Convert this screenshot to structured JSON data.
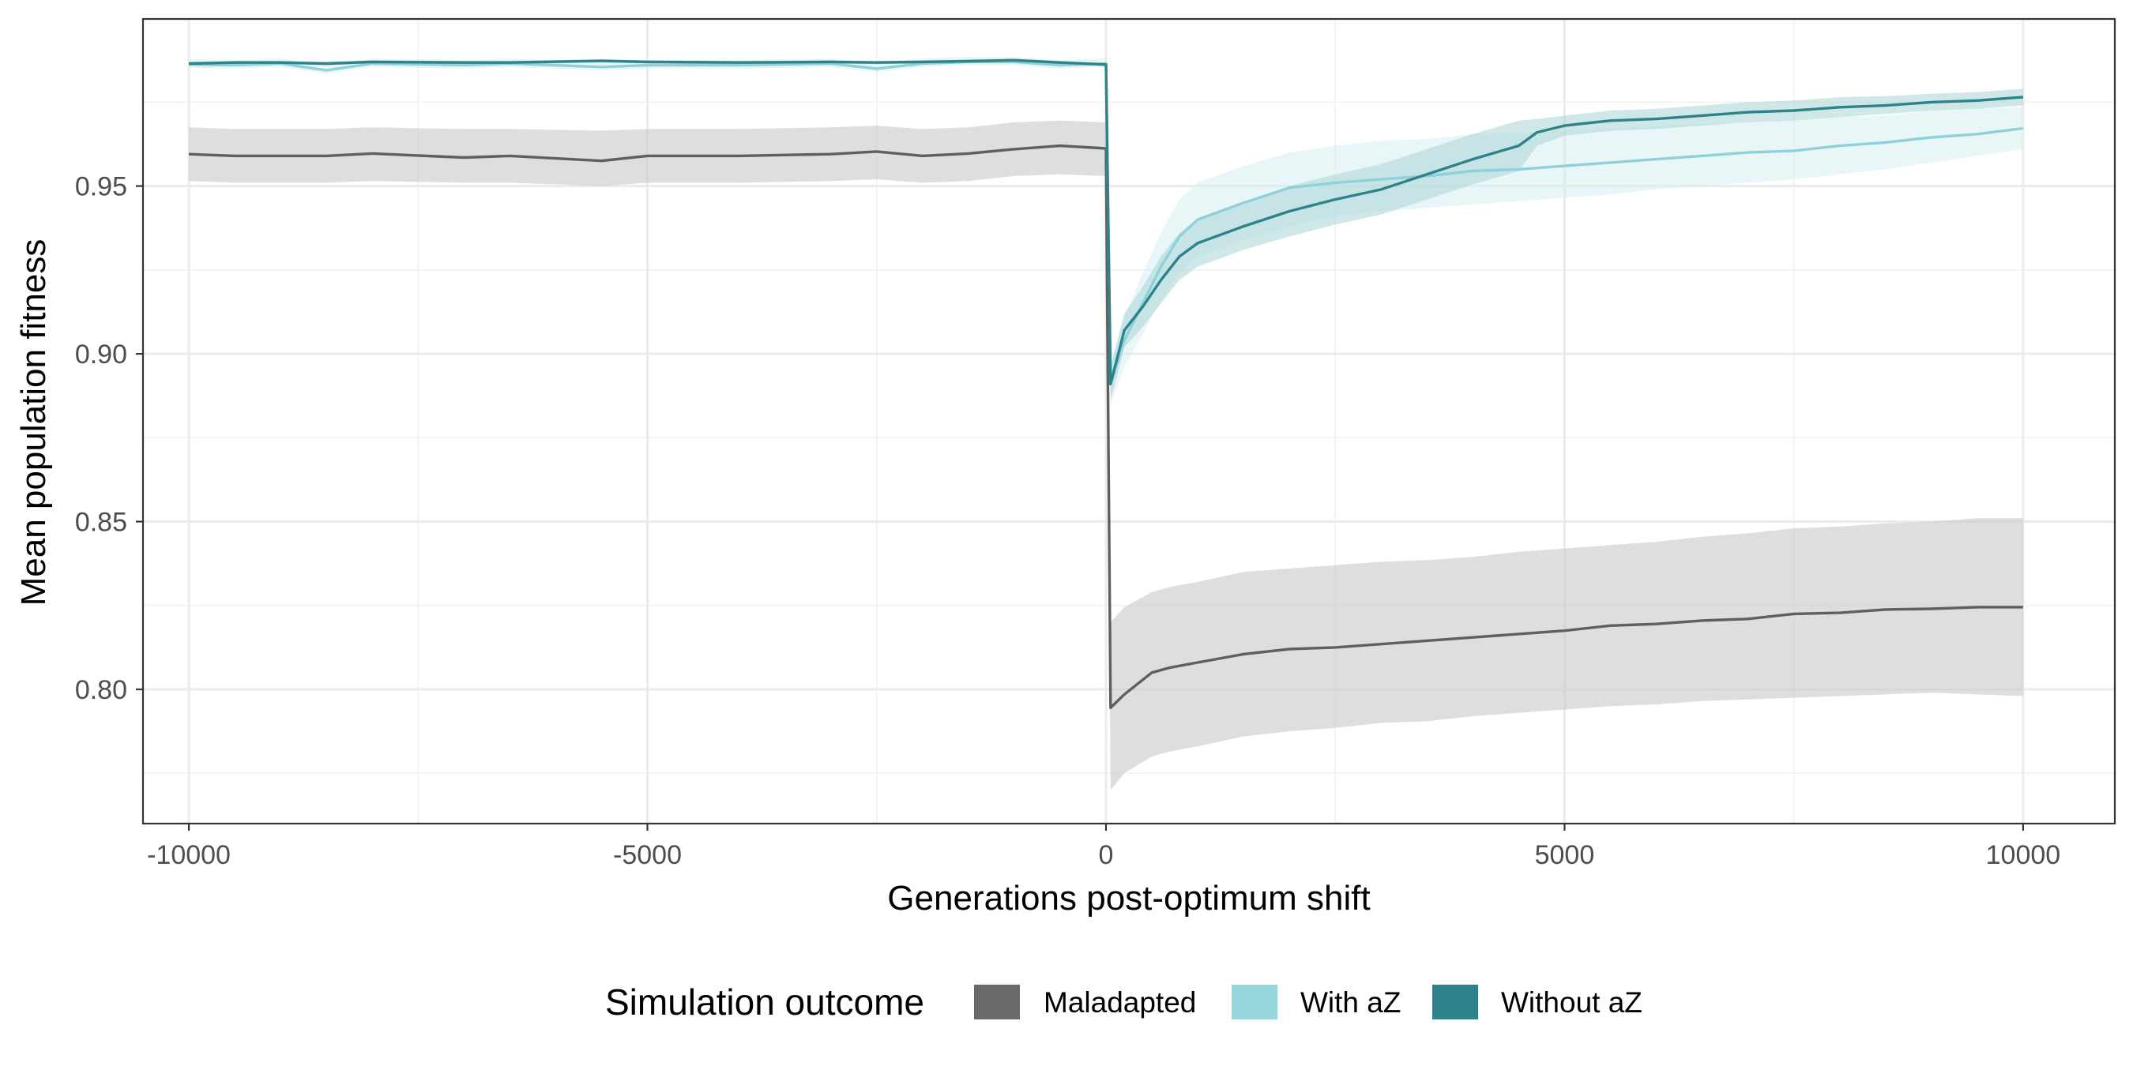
{
  "chart_data": {
    "type": "line",
    "xlabel": "Generations post-optimum shift",
    "ylabel": "Mean population fitness",
    "xlim": [
      -10500,
      11000
    ],
    "ylim": [
      0.76,
      0.9998
    ],
    "x_ticks": [
      -10000,
      -5000,
      0,
      5000,
      10000
    ],
    "x_tick_labels": [
      "-10000",
      "-5000",
      "0",
      "5000",
      "10000"
    ],
    "y_ticks": [
      0.8,
      0.85,
      0.9,
      0.95
    ],
    "y_tick_labels": [
      "0.80",
      "0.85",
      "0.90",
      "0.95"
    ],
    "grid": true,
    "legend": {
      "title": "Simulation outcome",
      "position": "bottom",
      "items": [
        {
          "label": "Maladapted",
          "color": "#696969"
        },
        {
          "label": "With aZ",
          "color": "#95d5dc"
        },
        {
          "label": "Without aZ",
          "color": "#2e8289"
        }
      ]
    },
    "series": [
      {
        "name": "Maladapted",
        "line_color": "#5f5f5f",
        "band_color": "#c8c8c8",
        "x": [
          -10000,
          -9500,
          -8500,
          -8000,
          -7000,
          -6500,
          -5500,
          -5000,
          -4000,
          -3000,
          -2500,
          -2000,
          -1500,
          -1000,
          -500,
          0,
          50,
          200,
          500,
          700,
          1000,
          1500,
          2000,
          2500,
          3000,
          3500,
          4000,
          4500,
          5000,
          5500,
          6000,
          6500,
          7000,
          7500,
          8000,
          8500,
          9000,
          9500,
          10000
        ],
        "y": [
          0.9595,
          0.959,
          0.959,
          0.9597,
          0.9585,
          0.959,
          0.9575,
          0.959,
          0.959,
          0.9595,
          0.9603,
          0.959,
          0.9597,
          0.961,
          0.962,
          0.9612,
          0.7945,
          0.7985,
          0.805,
          0.8065,
          0.808,
          0.8105,
          0.812,
          0.8125,
          0.8135,
          0.8145,
          0.8155,
          0.8165,
          0.8175,
          0.819,
          0.8195,
          0.8205,
          0.821,
          0.8225,
          0.8228,
          0.8238,
          0.824,
          0.8245,
          0.8245
        ],
        "lower": [
          0.9515,
          0.951,
          0.951,
          0.9515,
          0.951,
          0.951,
          0.95,
          0.951,
          0.951,
          0.9515,
          0.952,
          0.951,
          0.9515,
          0.953,
          0.9535,
          0.953,
          0.77,
          0.775,
          0.78,
          0.7815,
          0.783,
          0.786,
          0.7875,
          0.7885,
          0.79,
          0.7905,
          0.792,
          0.793,
          0.794,
          0.795,
          0.7955,
          0.7965,
          0.797,
          0.7975,
          0.798,
          0.7985,
          0.799,
          0.7985,
          0.798
        ],
        "upper": [
          0.9675,
          0.967,
          0.967,
          0.9675,
          0.967,
          0.967,
          0.9665,
          0.967,
          0.967,
          0.9675,
          0.968,
          0.967,
          0.9675,
          0.969,
          0.9695,
          0.969,
          0.82,
          0.8245,
          0.829,
          0.8305,
          0.832,
          0.835,
          0.836,
          0.837,
          0.838,
          0.8385,
          0.8395,
          0.841,
          0.842,
          0.843,
          0.844,
          0.8455,
          0.8465,
          0.848,
          0.8485,
          0.8495,
          0.85,
          0.851,
          0.851
        ]
      },
      {
        "name": "With aZ",
        "line_color": "#8fd1da",
        "band_color": "#d6eff2",
        "x": [
          -10000,
          -9500,
          -9000,
          -8500,
          -8000,
          -7000,
          -6500,
          -5500,
          -5000,
          -4000,
          -3000,
          -2500,
          -2000,
          -1500,
          -1000,
          -500,
          0,
          50,
          200,
          400,
          600,
          800,
          1000,
          1500,
          2000,
          2500,
          3000,
          3500,
          4000,
          4500,
          5000,
          5500,
          6000,
          6500,
          7000,
          7500,
          8000,
          8500,
          9000,
          9500,
          10000
        ],
        "y": [
          0.9862,
          0.986,
          0.9865,
          0.9845,
          0.9865,
          0.986,
          0.9865,
          0.9855,
          0.986,
          0.986,
          0.9865,
          0.985,
          0.9865,
          0.987,
          0.987,
          0.986,
          0.9865,
          0.891,
          0.904,
          0.915,
          0.926,
          0.935,
          0.94,
          0.945,
          0.9495,
          0.951,
          0.952,
          0.953,
          0.9545,
          0.955,
          0.956,
          0.957,
          0.958,
          0.959,
          0.96,
          0.9605,
          0.962,
          0.963,
          0.9645,
          0.9655,
          0.9672
        ],
        "lower": [
          0.9852,
          0.985,
          0.9855,
          0.9835,
          0.9855,
          0.985,
          0.9855,
          0.9845,
          0.985,
          0.985,
          0.9855,
          0.984,
          0.9855,
          0.986,
          0.986,
          0.985,
          0.9855,
          0.885,
          0.896,
          0.906,
          0.916,
          0.924,
          0.929,
          0.934,
          0.938,
          0.941,
          0.9425,
          0.9435,
          0.9445,
          0.9455,
          0.9465,
          0.9475,
          0.949,
          0.95,
          0.951,
          0.952,
          0.9535,
          0.955,
          0.957,
          0.959,
          0.961
        ],
        "upper": [
          0.9878,
          0.9876,
          0.988,
          0.986,
          0.988,
          0.9875,
          0.988,
          0.987,
          0.9875,
          0.9875,
          0.988,
          0.9865,
          0.988,
          0.9885,
          0.9885,
          0.9875,
          0.988,
          0.897,
          0.911,
          0.924,
          0.936,
          0.946,
          0.951,
          0.956,
          0.96,
          0.962,
          0.9635,
          0.964,
          0.9655,
          0.966,
          0.9665,
          0.967,
          0.968,
          0.9685,
          0.969,
          0.9695,
          0.9705,
          0.971,
          0.9725,
          0.973,
          0.9735
        ]
      },
      {
        "name": "Without aZ",
        "line_color": "#2e8289",
        "band_color": "#a9d3d6",
        "x": [
          -10000,
          -9500,
          -9000,
          -8500,
          -8000,
          -7000,
          -6500,
          -5500,
          -5000,
          -4000,
          -3000,
          -2500,
          -2000,
          -1500,
          -1000,
          -500,
          0,
          50,
          200,
          400,
          600,
          800,
          1000,
          1500,
          2000,
          2500,
          3000,
          3500,
          4000,
          4500,
          4700,
          5000,
          5500,
          6000,
          6500,
          7000,
          7500,
          8000,
          8500,
          9000,
          9500,
          10000
        ],
        "y": [
          0.9865,
          0.9868,
          0.9868,
          0.9865,
          0.987,
          0.9868,
          0.9868,
          0.9873,
          0.987,
          0.9868,
          0.987,
          0.9868,
          0.987,
          0.9872,
          0.9875,
          0.9868,
          0.9862,
          0.891,
          0.907,
          0.914,
          0.922,
          0.929,
          0.933,
          0.938,
          0.9425,
          0.946,
          0.949,
          0.9535,
          0.958,
          0.962,
          0.966,
          0.968,
          0.9695,
          0.97,
          0.971,
          0.972,
          0.9725,
          0.9735,
          0.974,
          0.975,
          0.9755,
          0.9765
        ],
        "lower": [
          0.986,
          0.9863,
          0.9863,
          0.986,
          0.9865,
          0.9863,
          0.9863,
          0.9868,
          0.9865,
          0.9863,
          0.9865,
          0.9863,
          0.9865,
          0.9867,
          0.987,
          0.9863,
          0.9857,
          0.886,
          0.902,
          0.908,
          0.915,
          0.922,
          0.926,
          0.931,
          0.935,
          0.9385,
          0.9415,
          0.946,
          0.9505,
          0.9545,
          0.962,
          0.965,
          0.9665,
          0.967,
          0.968,
          0.969,
          0.9695,
          0.9705,
          0.9715,
          0.9725,
          0.973,
          0.974
        ],
        "upper": [
          0.987,
          0.9873,
          0.9873,
          0.987,
          0.9875,
          0.9873,
          0.9873,
          0.9878,
          0.9875,
          0.9873,
          0.9875,
          0.9873,
          0.9875,
          0.9877,
          0.988,
          0.9873,
          0.9867,
          0.896,
          0.912,
          0.92,
          0.929,
          0.936,
          0.94,
          0.945,
          0.95,
          0.9535,
          0.9565,
          0.961,
          0.9655,
          0.9695,
          0.97,
          0.971,
          0.9725,
          0.973,
          0.974,
          0.975,
          0.9755,
          0.9765,
          0.9768,
          0.9775,
          0.978,
          0.979
        ]
      }
    ]
  }
}
